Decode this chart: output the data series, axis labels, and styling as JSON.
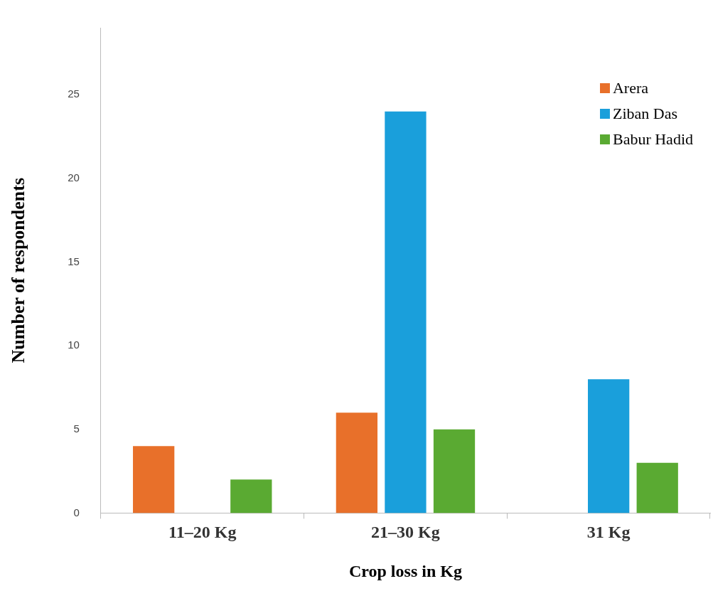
{
  "chart_data": {
    "type": "bar",
    "xlabel": "Crop loss in Kg",
    "ylabel": "Number of respondents",
    "categories": [
      "11–20 Kg",
      "21–30 Kg",
      "31 Kg"
    ],
    "series": [
      {
        "name": "Arera",
        "color": "#e8702a",
        "values": [
          4,
          6,
          0
        ]
      },
      {
        "name": "Ziban Das",
        "color": "#1a9fdb",
        "values": [
          0,
          24,
          8
        ]
      },
      {
        "name": "Babur Hadid",
        "color": "#5aaa32",
        "values": [
          2,
          5,
          3
        ]
      }
    ],
    "ylim": [
      0,
      29
    ],
    "yticks": [
      0,
      5,
      10,
      15,
      20,
      25
    ],
    "grid": false,
    "legend": "top right"
  }
}
